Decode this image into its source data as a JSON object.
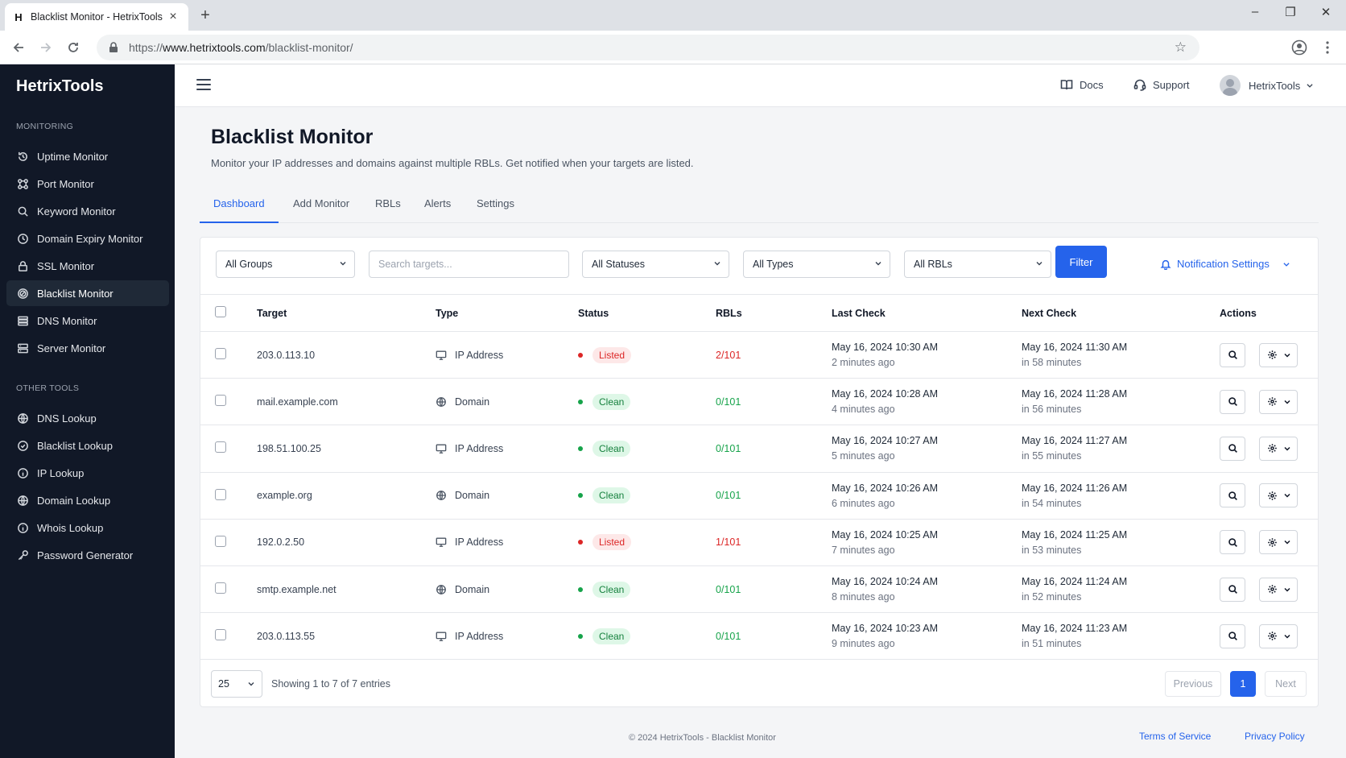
{
  "browser": {
    "tab_title": "Blacklist Monitor - HetrixTools",
    "favicon_letter": "H",
    "url_prefix": "https://",
    "url_domain": "www.hetrixtools.com",
    "url_path": "/blacklist-monitor/"
  },
  "sidebar": {
    "brand": "HetrixTools",
    "monitoring_label": "MONITORING",
    "monitoring_items": [
      {
        "label": "Uptime Monitor",
        "icon": "uptime-icon"
      },
      {
        "label": "Port Monitor",
        "icon": "port-icon"
      },
      {
        "label": "Keyword Monitor",
        "icon": "search-icon"
      },
      {
        "label": "Domain Expiry Monitor",
        "icon": "clock-icon"
      },
      {
        "label": "SSL Monitor",
        "icon": "lock-icon"
      },
      {
        "label": "Blacklist Monitor",
        "icon": "blacklist-icon",
        "active": true
      },
      {
        "label": "DNS Monitor",
        "icon": "dns-icon"
      },
      {
        "label": "Server Monitor",
        "icon": "server-icon"
      }
    ],
    "other_label": "OTHER TOOLS",
    "other_items": [
      {
        "label": "DNS Lookup",
        "icon": "globe-icon"
      },
      {
        "label": "Blacklist Lookup",
        "icon": "check-circle-icon"
      },
      {
        "label": "IP Lookup",
        "icon": "info-icon"
      },
      {
        "label": "Domain Lookup",
        "icon": "globe-icon"
      },
      {
        "label": "Whois Lookup",
        "icon": "info-icon"
      },
      {
        "label": "Password Generator",
        "icon": "key-icon"
      }
    ]
  },
  "header": {
    "docs": "Docs",
    "support": "Support",
    "user": "HetrixTools"
  },
  "main": {
    "title": "Blacklist Monitor",
    "subtitle": "Monitor your IP addresses and domains against multiple RBLs. Get notified when your targets are listed.",
    "tabs": [
      "Dashboard",
      "Add Monitor",
      "RBLs",
      "Alerts",
      "Settings"
    ],
    "active_tab": 0
  },
  "filters": {
    "groups": "All Groups",
    "search_placeholder": "Search targets...",
    "statuses": "All Statuses",
    "types": "All Types",
    "rbls": "All RBLs",
    "filter_button": "Filter",
    "notification_settings": "Notification Settings"
  },
  "table": {
    "columns": [
      "Target",
      "Type",
      "Status",
      "RBLs",
      "Last Check",
      "Next Check",
      "Actions"
    ],
    "rows": [
      {
        "target": "203.0.113.10",
        "type": "IP Address",
        "status": "Listed",
        "rbls": "2/101",
        "last": "May 16, 2024 10:30 AM",
        "last_ago": "2 minutes ago",
        "next": "May 16, 2024 11:30 AM",
        "next_in": "in 58 minutes"
      },
      {
        "target": "mail.example.com",
        "type": "Domain",
        "status": "Clean",
        "rbls": "0/101",
        "last": "May 16, 2024 10:28 AM",
        "last_ago": "4 minutes ago",
        "next": "May 16, 2024 11:28 AM",
        "next_in": "in 56 minutes"
      },
      {
        "target": "198.51.100.25",
        "type": "IP Address",
        "status": "Clean",
        "rbls": "0/101",
        "last": "May 16, 2024 10:27 AM",
        "last_ago": "5 minutes ago",
        "next": "May 16, 2024 11:27 AM",
        "next_in": "in 55 minutes"
      },
      {
        "target": "example.org",
        "type": "Domain",
        "status": "Clean",
        "rbls": "0/101",
        "last": "May 16, 2024 10:26 AM",
        "last_ago": "6 minutes ago",
        "next": "May 16, 2024 11:26 AM",
        "next_in": "in 54 minutes"
      },
      {
        "target": "192.0.2.50",
        "type": "IP Address",
        "status": "Listed",
        "rbls": "1/101",
        "last": "May 16, 2024 10:25 AM",
        "last_ago": "7 minutes ago",
        "next": "May 16, 2024 11:25 AM",
        "next_in": "in 53 minutes"
      },
      {
        "target": "smtp.example.net",
        "type": "Domain",
        "status": "Clean",
        "rbls": "0/101",
        "last": "May 16, 2024 10:24 AM",
        "last_ago": "8 minutes ago",
        "next": "May 16, 2024 11:24 AM",
        "next_in": "in 52 minutes"
      },
      {
        "target": "203.0.113.55",
        "type": "IP Address",
        "status": "Clean",
        "rbls": "0/101",
        "last": "May 16, 2024 10:23 AM",
        "last_ago": "9 minutes ago",
        "next": "May 16, 2024 11:23 AM",
        "next_in": "in 51 minutes"
      }
    ]
  },
  "pagination": {
    "per_page": "25",
    "showing": "Showing 1 to 7 of 7 entries",
    "previous": "Previous",
    "current": "1",
    "next": "Next"
  },
  "footer": {
    "copyright": "© 2024 HetrixTools - Blacklist Monitor",
    "terms": "Terms of Service",
    "privacy": "Privacy Policy"
  },
  "colors": {
    "sidebar_bg": "#111827",
    "accent": "#2563eb",
    "listed": "#dc2626",
    "clean": "#16a34a"
  }
}
